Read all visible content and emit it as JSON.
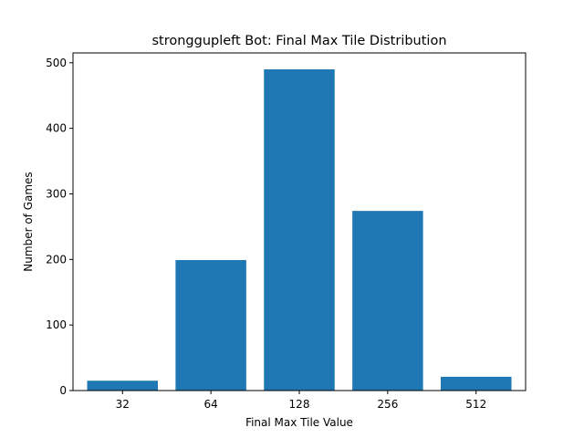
{
  "chart_data": {
    "type": "bar",
    "title": "stronggupleft Bot: Final Max Tile Distribution",
    "xlabel": "Final Max Tile Value",
    "ylabel": "Number of Games",
    "categories": [
      "32",
      "64",
      "128",
      "256",
      "512"
    ],
    "values": [
      15,
      199,
      490,
      274,
      21
    ],
    "ylim": [
      0,
      515
    ],
    "yticks": [
      0,
      100,
      200,
      300,
      400,
      500
    ],
    "grid": false,
    "bar_color": "#1f77b4"
  }
}
